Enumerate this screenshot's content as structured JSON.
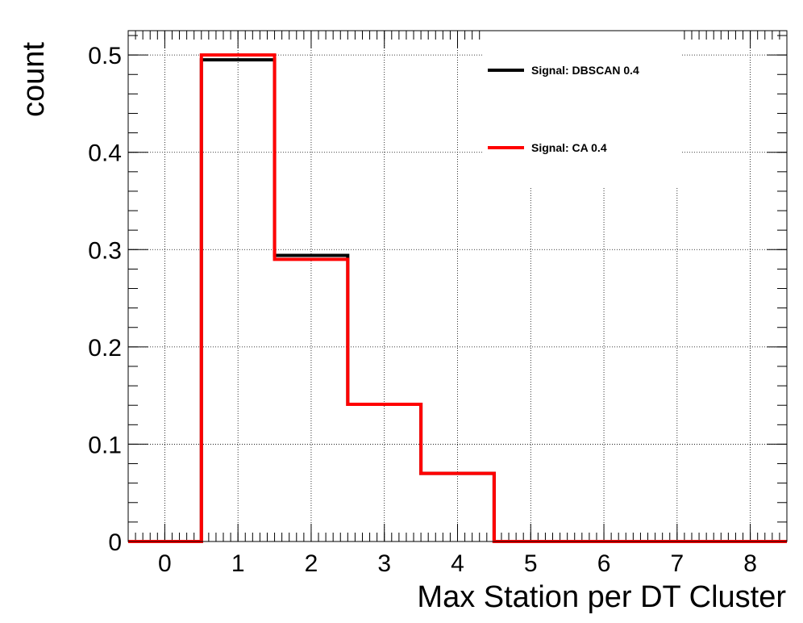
{
  "chart_data": {
    "type": "histogram",
    "title": "",
    "xlabel": "Max Station per DT Cluster",
    "ylabel": "count",
    "xlim": [
      -0.5,
      8.5
    ],
    "ylim": [
      0,
      0.525
    ],
    "x_ticks": [
      "0",
      "1",
      "2",
      "3",
      "4",
      "5",
      "6",
      "7",
      "8"
    ],
    "y_ticks": [
      "0",
      "0.1",
      "0.2",
      "0.3",
      "0.4",
      "0.5"
    ],
    "grid": true,
    "legend_position": "top-right",
    "bin_edges": [
      -0.5,
      0.5,
      1.5,
      2.5,
      3.5,
      4.5,
      5.5,
      6.5,
      7.5,
      8.5
    ],
    "series": [
      {
        "name": "Signal: DBSCAN 0.4",
        "color": "#000000",
        "values": [
          0,
          0.495,
          0.294,
          0.141,
          0.07,
          0,
          0,
          0,
          0
        ]
      },
      {
        "name": "Signal: CA 0.4",
        "color": "#ff0000",
        "values": [
          0,
          0.5,
          0.29,
          0.141,
          0.07,
          0,
          0,
          0,
          0
        ]
      }
    ]
  }
}
